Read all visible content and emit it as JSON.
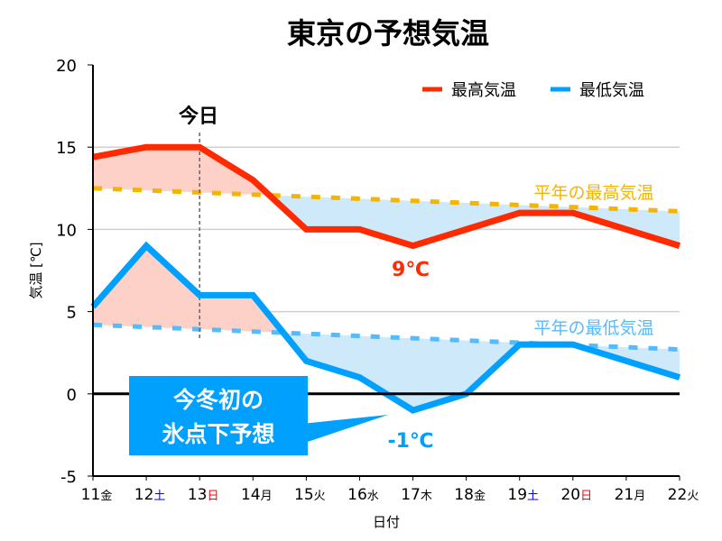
{
  "chart_data": {
    "type": "line",
    "title": "東京の予想気温",
    "xlabel": "日付",
    "ylabel": "気温 [℃]",
    "ylim": [
      -5,
      20
    ],
    "yticks": [
      -5,
      0,
      5,
      10,
      15,
      20
    ],
    "grid": true,
    "legend_position": "top-right",
    "categories": [
      {
        "day": "11",
        "dow": "金",
        "color": "#000000"
      },
      {
        "day": "12",
        "dow": "土",
        "color": "#0000ff"
      },
      {
        "day": "13",
        "dow": "日",
        "color": "#ff0000"
      },
      {
        "day": "14",
        "dow": "月",
        "color": "#000000"
      },
      {
        "day": "15",
        "dow": "火",
        "color": "#000000"
      },
      {
        "day": "16",
        "dow": "水",
        "color": "#000000"
      },
      {
        "day": "17",
        "dow": "木",
        "color": "#000000"
      },
      {
        "day": "18",
        "dow": "金",
        "color": "#000000"
      },
      {
        "day": "19",
        "dow": "土",
        "color": "#0000ff"
      },
      {
        "day": "20",
        "dow": "日",
        "color": "#ff0000"
      },
      {
        "day": "21",
        "dow": "月",
        "color": "#000000"
      },
      {
        "day": "22",
        "dow": "火",
        "color": "#000000"
      }
    ],
    "series": [
      {
        "name": "最高気温",
        "color": "#ff2a00",
        "values": [
          14.4,
          15,
          15,
          13,
          10,
          10,
          9,
          10,
          11,
          11,
          10,
          9
        ]
      },
      {
        "name": "最低気温",
        "color": "#00a0ff",
        "values": [
          5.3,
          9,
          6,
          6,
          2,
          1,
          -1,
          0,
          3,
          3,
          2,
          1
        ]
      }
    ],
    "normals": [
      {
        "name": "平年の最高気温",
        "color": "#f5b400",
        "values": [
          12.5,
          11.1
        ]
      },
      {
        "name": "平年の最低気温",
        "color": "#55bbff",
        "values": [
          4.2,
          2.7
        ]
      }
    ],
    "fill_colors": {
      "above": "#fdd0c8",
      "below": "#cde9fa"
    },
    "today": {
      "label": "今日",
      "index": 2
    },
    "annotations": [
      {
        "text": "9℃",
        "color": "#ff2a00"
      },
      {
        "text": "-1℃",
        "color": "#00a0ff"
      }
    ],
    "callout": {
      "lines": [
        "今冬初の",
        "氷点下予想"
      ],
      "color": "#00a0ff"
    }
  }
}
